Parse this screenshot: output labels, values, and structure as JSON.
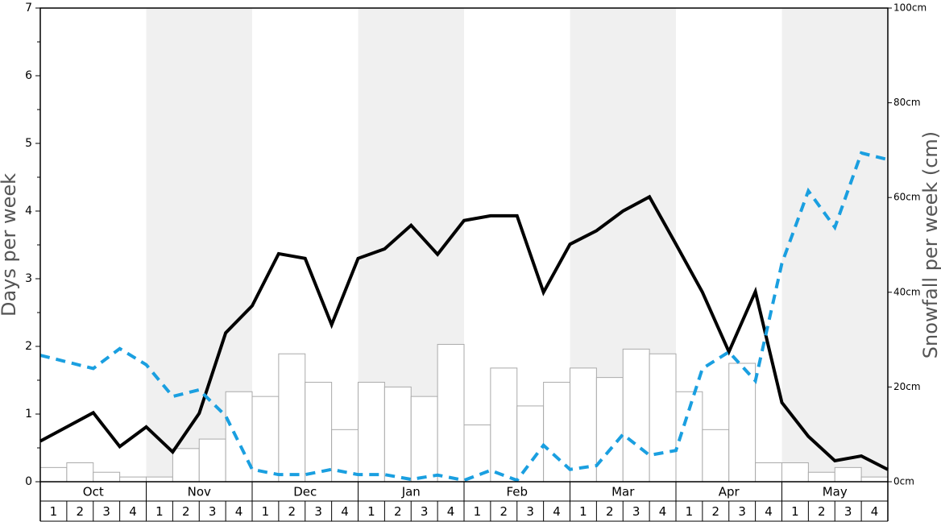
{
  "chart_data": {
    "type": "bar-line",
    "ylabel": "Days per week",
    "y2label": "Snowfall per week (cm)",
    "months": [
      "Oct",
      "Nov",
      "Dec",
      "Jan",
      "Feb",
      "Mar",
      "Apr",
      "May"
    ],
    "categories": [
      "1",
      "2",
      "3",
      "4",
      "1",
      "2",
      "3",
      "4",
      "1",
      "2",
      "3",
      "4",
      "1",
      "2",
      "3",
      "4",
      "1",
      "2",
      "3",
      "4",
      "1",
      "2",
      "3",
      "4",
      "1",
      "2",
      "3",
      "4",
      "1",
      "2",
      "3",
      "4"
    ],
    "ylim": [
      0,
      7
    ],
    "yticks": [
      0,
      1,
      2,
      3,
      4,
      5,
      6,
      7
    ],
    "y2lim": [
      0,
      100
    ],
    "y2ticks": [
      {
        "value": 0,
        "label": "0cm"
      },
      {
        "value": 20,
        "label": "20cm"
      },
      {
        "value": 40,
        "label": "40cm"
      },
      {
        "value": 60,
        "label": "60cm"
      },
      {
        "value": 80,
        "label": "80cm"
      },
      {
        "value": 100,
        "label": "100cm"
      }
    ],
    "shade_color": "#f0f0f0",
    "bars": {
      "axis": "y2",
      "color": "#ffffff",
      "edge": "#aaaaaa",
      "values": [
        3,
        4,
        2,
        1,
        1,
        7,
        9,
        19,
        18,
        27,
        21,
        11,
        21,
        20,
        18,
        29,
        12,
        24,
        16,
        21,
        24,
        22,
        28,
        27,
        19,
        11,
        25,
        4,
        4,
        2,
        3,
        1
      ]
    },
    "xlim": [
      0,
      32
    ],
    "x": [
      0,
      1,
      2,
      3,
      4,
      5,
      6,
      7,
      8,
      9,
      10,
      11,
      12,
      13,
      14,
      15,
      16,
      17,
      18,
      19,
      20,
      21,
      22,
      23,
      24,
      25,
      26,
      27,
      28,
      29,
      30,
      31,
      32
    ],
    "series": [
      {
        "color": "#000000",
        "axis": "y",
        "dashed": false,
        "values": [
          0.6,
          0.81,
          1.02,
          0.52,
          0.81,
          0.44,
          1.01,
          2.2,
          2.6,
          3.37,
          3.3,
          2.32,
          3.3,
          3.44,
          3.79,
          3.36,
          3.86,
          3.93,
          3.93,
          2.8,
          3.51,
          3.71,
          4.0,
          4.21,
          3.51,
          2.8,
          1.92,
          2.81,
          1.17,
          0.67,
          0.31,
          0.38,
          0.18
        ]
      },
      {
        "color": "#1a9fe0",
        "axis": "y2",
        "dashed": true,
        "values": [
          26.7,
          25.3,
          23.9,
          28.1,
          24.7,
          18.0,
          19.4,
          13.9,
          2.6,
          1.5,
          1.5,
          2.6,
          1.5,
          1.5,
          0.5,
          1.4,
          0.3,
          2.4,
          0.3,
          7.7,
          2.6,
          3.4,
          10.0,
          5.6,
          6.6,
          23.9,
          27.4,
          21.3,
          46.1,
          61.4,
          53.7,
          69.4,
          68.0
        ]
      }
    ]
  }
}
